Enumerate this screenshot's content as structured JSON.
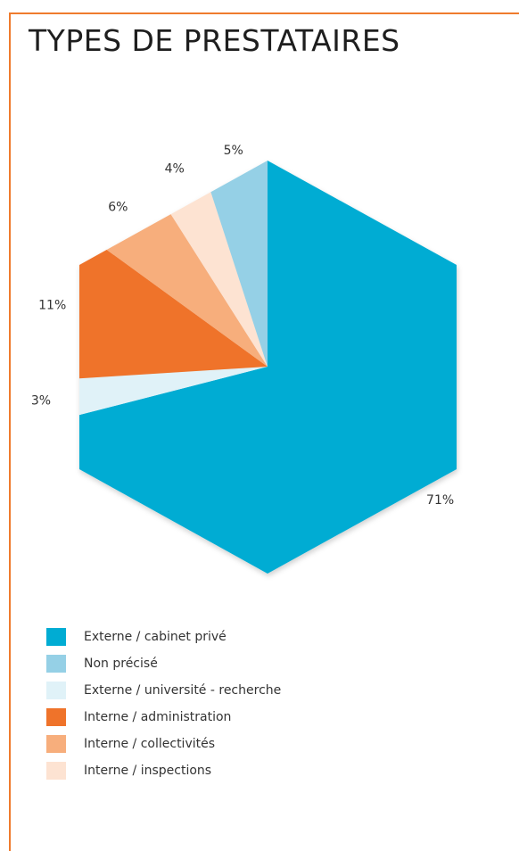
{
  "title": "TYPES DE PRESTATAIRES",
  "chart_data": {
    "type": "pie",
    "shape": "hexagon",
    "title": "TYPES DE PRESTATAIRES",
    "legend_position": "bottom",
    "unit": "%",
    "slices": [
      {
        "name": "Externe / cabinet privé",
        "value": 71,
        "label": "71%",
        "color": "#00acd3"
      },
      {
        "name": "Externe / université - recherche",
        "value": 3,
        "label": "3%",
        "color": "#e0f2f8"
      },
      {
        "name": "Interne / administration",
        "value": 11,
        "label": "11%",
        "color": "#ef732a"
      },
      {
        "name": "Interne / collectivités",
        "value": 6,
        "label": "6%",
        "color": "#f7ae7c"
      },
      {
        "name": "Interne / inspections",
        "value": 4,
        "label": "4%",
        "color": "#fde3d2"
      },
      {
        "name": "Non précisé",
        "value": 5,
        "label": "5%",
        "color": "#95d0e6"
      }
    ],
    "legend": [
      {
        "name": "Externe / cabinet privé",
        "color": "#00acd3"
      },
      {
        "name": "Non précisé",
        "color": "#95d0e6"
      },
      {
        "name": "Externe / université - recherche",
        "color": "#e0f2f8"
      },
      {
        "name": "Interne / administration",
        "color": "#ef732a"
      },
      {
        "name": "Interne / collectivités",
        "color": "#f7ae7c"
      },
      {
        "name": "Interne / inspections",
        "color": "#fde3d2"
      }
    ]
  },
  "colors": {
    "frame_accent": "#ef7b2d"
  }
}
